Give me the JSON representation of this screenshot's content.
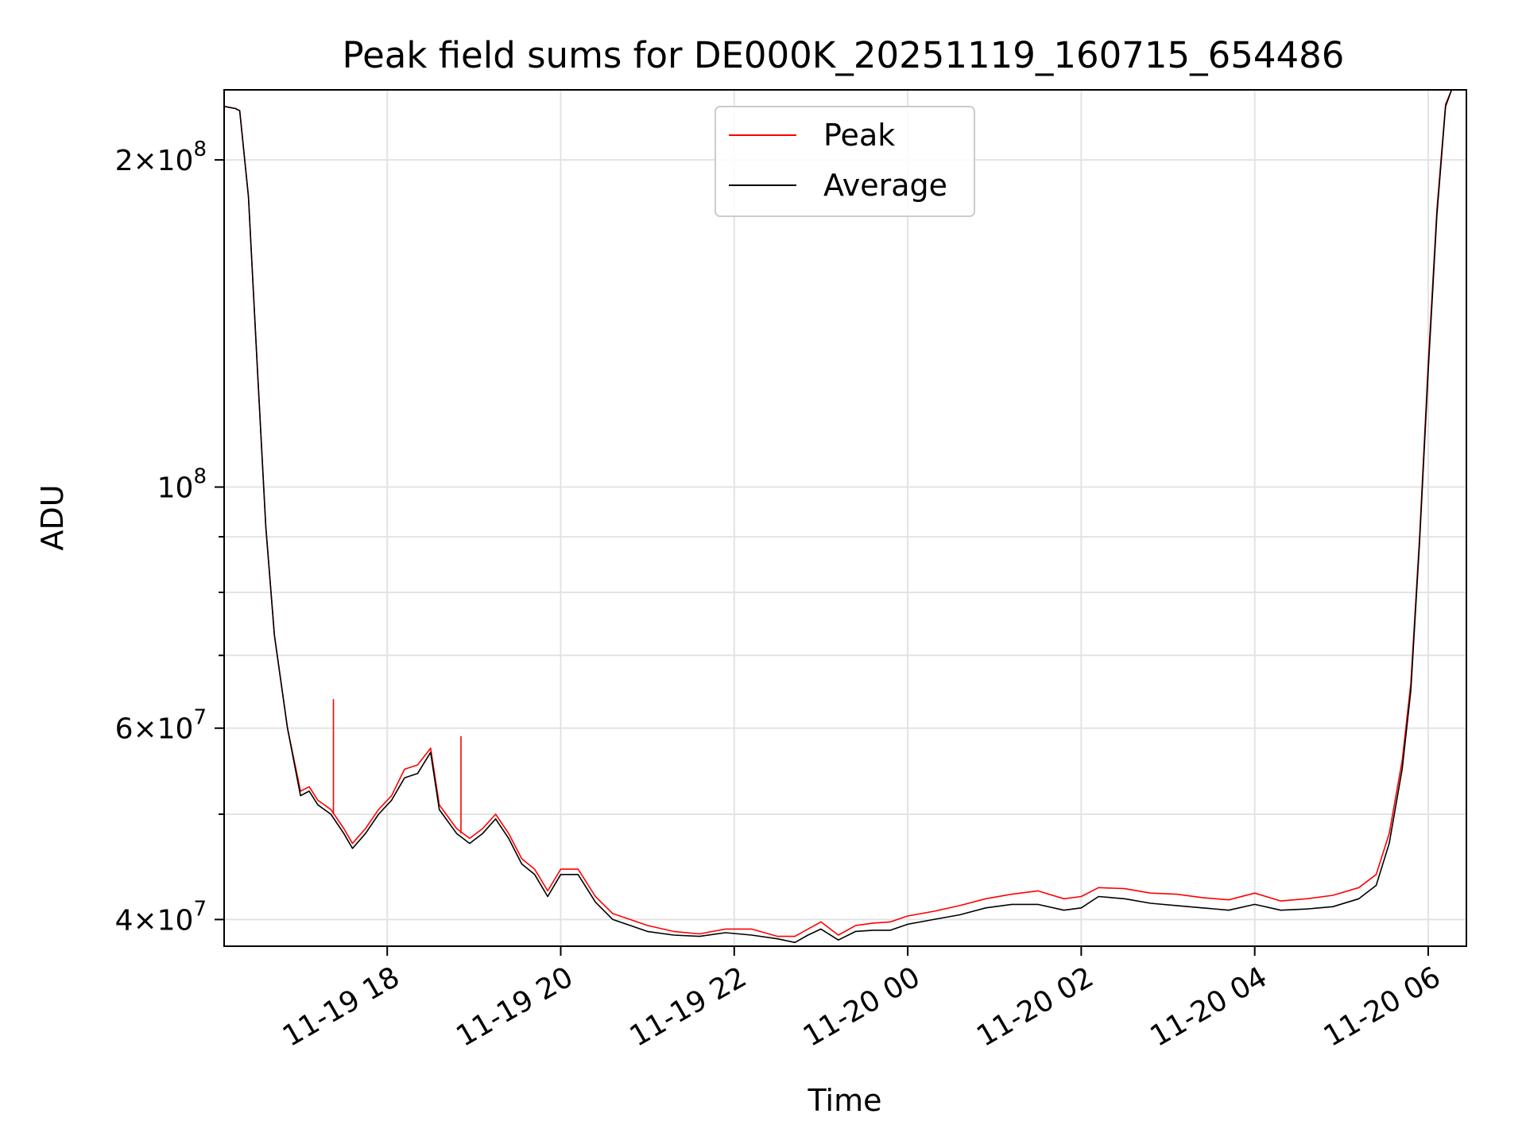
{
  "chart_data": {
    "type": "line",
    "title": "Peak field sums for DE000K_20251119_160715_654486",
    "xlabel": "Time",
    "ylabel": "ADU",
    "yscale": "log",
    "xlim": [
      16.12,
      30.44
    ],
    "ylim": [
      37800000,
      232000000
    ],
    "grid": true,
    "legend_position": "top-center",
    "x_ticks": [
      {
        "value": 18,
        "label": "11-19 18"
      },
      {
        "value": 20,
        "label": "11-19 20"
      },
      {
        "value": 22,
        "label": "11-19 22"
      },
      {
        "value": 24,
        "label": "11-20 00"
      },
      {
        "value": 26,
        "label": "11-20 02"
      },
      {
        "value": 28,
        "label": "11-20 04"
      },
      {
        "value": 30,
        "label": "11-20 06"
      }
    ],
    "y_ticks": [
      {
        "value": 40000000,
        "base": "4",
        "exp": "7"
      },
      {
        "value": 60000000,
        "base": "6",
        "exp": "7"
      },
      {
        "value": 100000000,
        "base": "",
        "exp": "8"
      },
      {
        "value": 200000000,
        "base": "2",
        "exp": "8"
      }
    ],
    "y_minor_ticks": [
      50000000,
      70000000,
      80000000,
      90000000
    ],
    "times_multiply_sign": "×",
    "series": [
      {
        "name": "Peak",
        "color": "#ff0000",
        "x": [
          16.12,
          16.25,
          16.3,
          16.4,
          16.5,
          16.6,
          16.7,
          16.85,
          17.0,
          17.1,
          17.2,
          17.35,
          17.5,
          17.6,
          17.75,
          17.9,
          18.05,
          18.2,
          18.35,
          18.5,
          18.6,
          18.8,
          18.95,
          19.1,
          19.25,
          19.4,
          19.55,
          19.7,
          19.85,
          20.0,
          20.2,
          20.4,
          20.6,
          20.8,
          21.0,
          21.3,
          21.6,
          21.9,
          22.2,
          22.5,
          22.7,
          22.85,
          23.0,
          23.2,
          23.4,
          23.6,
          23.8,
          24.0,
          24.3,
          24.6,
          24.9,
          25.2,
          25.5,
          25.8,
          26.0,
          26.2,
          26.5,
          26.8,
          27.1,
          27.4,
          27.7,
          28.0,
          28.3,
          28.6,
          28.9,
          29.2,
          29.4,
          29.55,
          29.7,
          29.8,
          29.9,
          30.0,
          30.1,
          30.2,
          30.27
        ],
        "y": [
          224000000,
          223000000,
          222000000,
          185000000,
          130000000,
          92000000,
          73000000,
          60000000,
          52500000,
          53000000,
          51500000,
          50500000,
          48500000,
          47000000,
          48500000,
          50500000,
          52000000,
          55000000,
          55500000,
          57500000,
          51000000,
          48500000,
          47500000,
          48500000,
          50000000,
          48000000,
          45500000,
          44500000,
          42500000,
          44500000,
          44500000,
          42000000,
          40500000,
          40000000,
          39500000,
          39000000,
          38800000,
          39200000,
          39200000,
          38600000,
          38600000,
          39200000,
          39800000,
          38700000,
          39500000,
          39700000,
          39800000,
          40300000,
          40700000,
          41200000,
          41800000,
          42200000,
          42500000,
          41800000,
          42000000,
          42800000,
          42700000,
          42300000,
          42200000,
          41900000,
          41700000,
          42300000,
          41600000,
          41800000,
          42100000,
          42800000,
          44000000,
          48000000,
          56000000,
          66000000,
          90000000,
          130000000,
          180000000,
          225000000,
          232000000
        ],
        "spikes": [
          {
            "x": 17.38,
            "y": 63800000
          },
          {
            "x": 18.85,
            "y": 59000000
          }
        ]
      },
      {
        "name": "Average",
        "color": "#000000",
        "x": [
          16.12,
          16.25,
          16.3,
          16.4,
          16.5,
          16.6,
          16.7,
          16.85,
          17.0,
          17.1,
          17.2,
          17.35,
          17.5,
          17.6,
          17.75,
          17.9,
          18.05,
          18.2,
          18.35,
          18.5,
          18.6,
          18.8,
          18.95,
          19.1,
          19.25,
          19.4,
          19.55,
          19.7,
          19.85,
          20.0,
          20.2,
          20.4,
          20.6,
          20.8,
          21.0,
          21.3,
          21.6,
          21.9,
          22.2,
          22.5,
          22.7,
          22.85,
          23.0,
          23.2,
          23.4,
          23.6,
          23.8,
          24.0,
          24.3,
          24.6,
          24.9,
          25.2,
          25.5,
          25.8,
          26.0,
          26.2,
          26.5,
          26.8,
          27.1,
          27.4,
          27.7,
          28.0,
          28.3,
          28.6,
          28.9,
          29.2,
          29.4,
          29.55,
          29.7,
          29.8,
          29.9,
          30.0,
          30.1,
          30.2,
          30.27
        ],
        "y": [
          224000000,
          223000000,
          222000000,
          185000000,
          130000000,
          92000000,
          73000000,
          60000000,
          52000000,
          52500000,
          51000000,
          50000000,
          48000000,
          46500000,
          48000000,
          50000000,
          51500000,
          54000000,
          54500000,
          57000000,
          50500000,
          48000000,
          47000000,
          48000000,
          49500000,
          47500000,
          45000000,
          44000000,
          42000000,
          44000000,
          44000000,
          41500000,
          40000000,
          39500000,
          39000000,
          38700000,
          38600000,
          38900000,
          38700000,
          38400000,
          38100000,
          38700000,
          39200000,
          38300000,
          39000000,
          39100000,
          39100000,
          39600000,
          40000000,
          40400000,
          41000000,
          41300000,
          41300000,
          40800000,
          41000000,
          42000000,
          41800000,
          41400000,
          41200000,
          41000000,
          40800000,
          41300000,
          40800000,
          40900000,
          41100000,
          41800000,
          43000000,
          47000000,
          55000000,
          65000000,
          89000000,
          128000000,
          178000000,
          224000000,
          232000000
        ]
      }
    ]
  }
}
